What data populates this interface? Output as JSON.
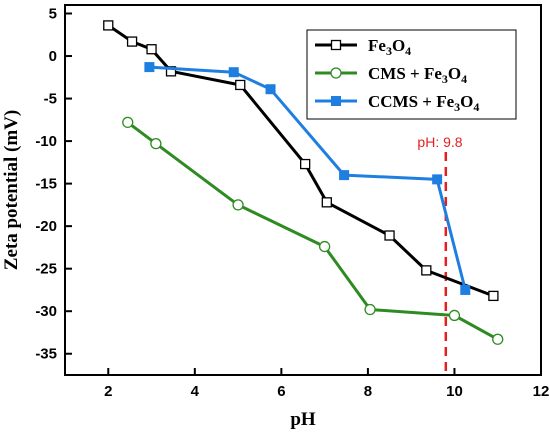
{
  "chart_data": {
    "type": "line",
    "xlabel": "pH",
    "ylabel": "Zeta potential (mV)",
    "xlim": [
      1,
      12
    ],
    "ylim": [
      -37.5,
      6
    ],
    "xticks": [
      2,
      4,
      6,
      8,
      10,
      12
    ],
    "yticks": [
      5,
      0,
      -5,
      -10,
      -15,
      -20,
      -25,
      -30,
      -35
    ],
    "grid": false,
    "legend_position": "top-right",
    "series": [
      {
        "name": "Fe3O4",
        "color": "#000000",
        "marker": "open-square",
        "points": [
          [
            2.0,
            3.6
          ],
          [
            2.55,
            1.7
          ],
          [
            3.0,
            0.8
          ],
          [
            3.45,
            -1.8
          ],
          [
            5.05,
            -3.4
          ],
          [
            6.55,
            -12.7
          ],
          [
            7.05,
            -17.2
          ],
          [
            8.5,
            -21.1
          ],
          [
            9.35,
            -25.2
          ],
          [
            10.9,
            -28.2
          ]
        ]
      },
      {
        "name": "CMS + Fe3O4",
        "color": "#2e8b22",
        "marker": "open-circle",
        "points": [
          [
            2.45,
            -7.8
          ],
          [
            3.1,
            -10.3
          ],
          [
            5.0,
            -17.5
          ],
          [
            7.0,
            -22.4
          ],
          [
            8.05,
            -29.8
          ],
          [
            10.0,
            -30.5
          ],
          [
            11.0,
            -33.3
          ]
        ]
      },
      {
        "name": "CCMS + Fe3O4",
        "color": "#1f7fe0",
        "marker": "filled-square",
        "points": [
          [
            2.95,
            -1.3
          ],
          [
            4.9,
            -1.9
          ],
          [
            5.75,
            -3.9
          ],
          [
            7.45,
            -14.0
          ],
          [
            9.6,
            -14.5
          ],
          [
            10.25,
            -27.5
          ]
        ]
      }
    ],
    "annotation": {
      "text": "pH: 9.8",
      "x": 9.8,
      "color": "#e51f1f"
    }
  }
}
